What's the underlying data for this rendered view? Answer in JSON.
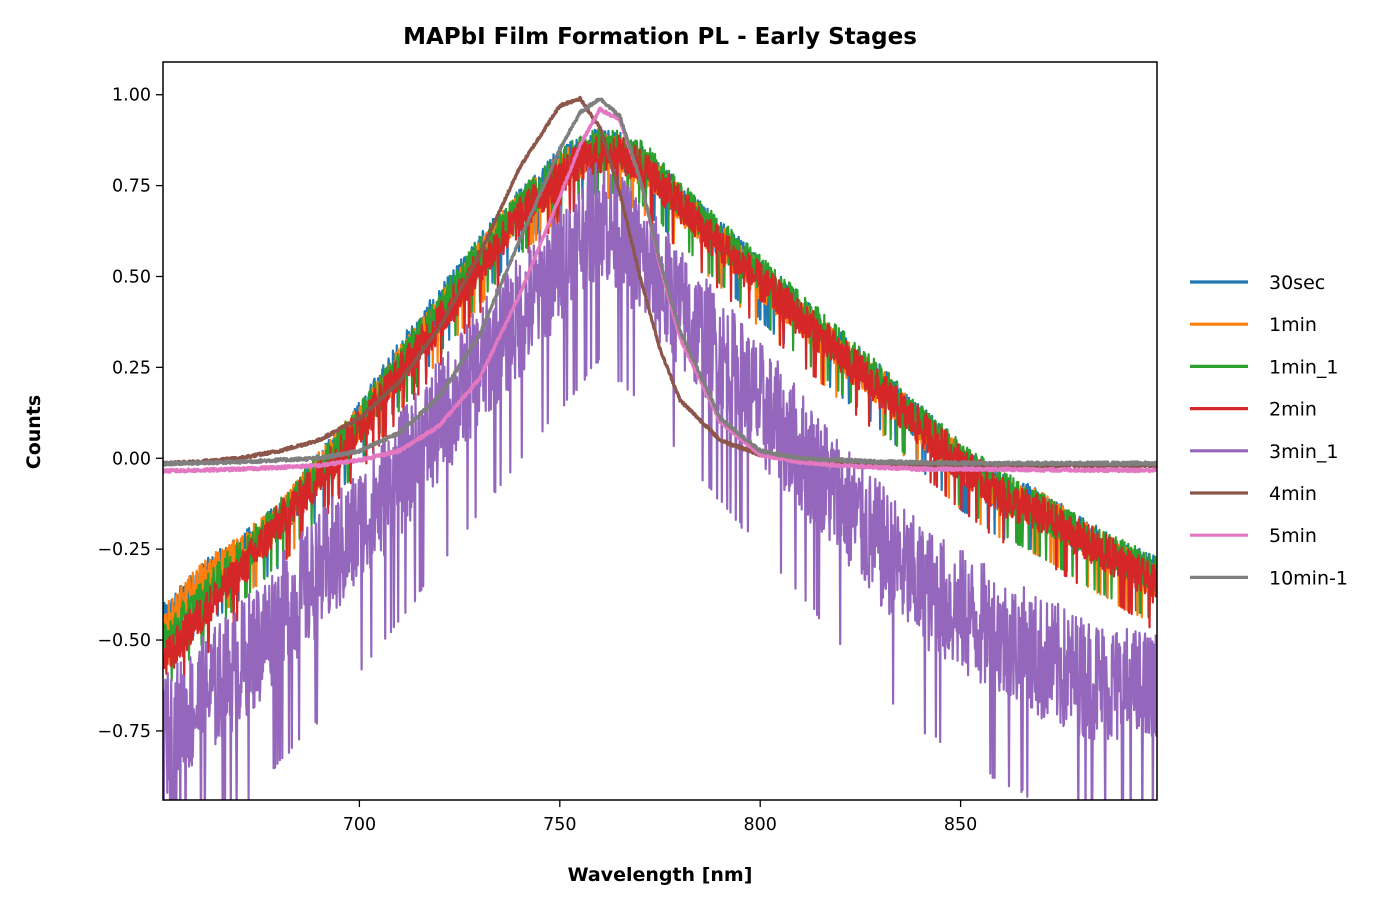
{
  "chart_data": {
    "type": "line",
    "title": "MAPbI Film Formation PL - Early Stages",
    "xlabel": "Wavelength [nm]",
    "ylabel": "Counts",
    "xlim": [
      651,
      899
    ],
    "ylim": [
      -0.94,
      1.09
    ],
    "x_ticks": [
      700,
      750,
      800,
      850
    ],
    "x_tick_labels": [
      "700",
      "750",
      "800",
      "850"
    ],
    "y_ticks": [
      -0.75,
      -0.5,
      -0.25,
      0.0,
      0.25,
      0.5,
      0.75,
      1.0
    ],
    "y_tick_labels": [
      "−0.75",
      "−0.50",
      "−0.25",
      "0.00",
      "0.25",
      "0.50",
      "0.75",
      "1.00"
    ],
    "grid": false,
    "legend_position": "right, outside plot",
    "x_sample": [
      651,
      660,
      670,
      680,
      690,
      700,
      710,
      720,
      730,
      740,
      750,
      755,
      760,
      765,
      770,
      775,
      780,
      790,
      800,
      810,
      820,
      830,
      840,
      850,
      860,
      870,
      880,
      890,
      899
    ],
    "series": [
      {
        "name": "30sec",
        "color": "#1f77b4",
        "noise": 0.05,
        "values": [
          -0.44,
          -0.33,
          -0.25,
          -0.16,
          -0.02,
          0.12,
          0.29,
          0.43,
          0.58,
          0.71,
          0.82,
          0.85,
          0.87,
          0.86,
          0.83,
          0.78,
          0.72,
          0.62,
          0.52,
          0.41,
          0.31,
          0.22,
          0.11,
          0.0,
          -0.08,
          -0.12,
          -0.2,
          -0.26,
          -0.31
        ]
      },
      {
        "name": "1min",
        "color": "#ff7f0e",
        "noise": 0.05,
        "values": [
          -0.45,
          -0.33,
          -0.25,
          -0.16,
          -0.02,
          0.11,
          0.27,
          0.41,
          0.56,
          0.7,
          0.8,
          0.84,
          0.86,
          0.85,
          0.82,
          0.77,
          0.71,
          0.61,
          0.5,
          0.4,
          0.3,
          0.21,
          0.1,
          0.0,
          -0.08,
          -0.13,
          -0.2,
          -0.27,
          -0.32
        ]
      },
      {
        "name": "1min_1",
        "color": "#2ca02c",
        "noise": 0.05,
        "values": [
          -0.5,
          -0.38,
          -0.26,
          -0.15,
          -0.02,
          0.11,
          0.27,
          0.42,
          0.57,
          0.7,
          0.81,
          0.85,
          0.87,
          0.87,
          0.84,
          0.79,
          0.73,
          0.62,
          0.52,
          0.42,
          0.32,
          0.22,
          0.11,
          0.01,
          -0.07,
          -0.13,
          -0.2,
          -0.26,
          -0.31
        ]
      },
      {
        "name": "2min",
        "color": "#d62728",
        "noise": 0.05,
        "values": [
          -0.55,
          -0.42,
          -0.3,
          -0.16,
          -0.04,
          0.1,
          0.25,
          0.39,
          0.54,
          0.68,
          0.79,
          0.83,
          0.85,
          0.85,
          0.82,
          0.77,
          0.71,
          0.6,
          0.5,
          0.4,
          0.3,
          0.2,
          0.1,
          0.0,
          -0.09,
          -0.14,
          -0.21,
          -0.27,
          -0.34
        ]
      },
      {
        "name": "3min_1",
        "color": "#9467bd",
        "noise": 0.16,
        "values": [
          -0.72,
          -0.62,
          -0.52,
          -0.39,
          -0.27,
          -0.14,
          0.0,
          0.15,
          0.3,
          0.44,
          0.58,
          0.65,
          0.72,
          0.66,
          0.6,
          0.53,
          0.46,
          0.33,
          0.2,
          0.07,
          -0.06,
          -0.19,
          -0.3,
          -0.37,
          -0.44,
          -0.5,
          -0.55,
          -0.58,
          -0.6
        ]
      },
      {
        "name": "4min",
        "color": "#8c564b",
        "noise": 0.004,
        "values": [
          -0.015,
          -0.01,
          -0.0,
          0.02,
          0.05,
          0.11,
          0.21,
          0.36,
          0.56,
          0.8,
          0.97,
          0.99,
          0.91,
          0.73,
          0.5,
          0.3,
          0.16,
          0.05,
          0.01,
          -0.005,
          -0.01,
          -0.015,
          -0.018,
          -0.02,
          -0.02,
          -0.02,
          -0.02,
          -0.02,
          -0.02
        ]
      },
      {
        "name": "5min",
        "color": "#e377c2",
        "noise": 0.004,
        "values": [
          -0.035,
          -0.033,
          -0.03,
          -0.025,
          -0.02,
          -0.005,
          0.02,
          0.09,
          0.22,
          0.45,
          0.72,
          0.86,
          0.96,
          0.93,
          0.77,
          0.53,
          0.33,
          0.1,
          0.01,
          -0.01,
          -0.02,
          -0.025,
          -0.03,
          -0.03,
          -0.03,
          -0.032,
          -0.032,
          -0.033,
          -0.033
        ]
      },
      {
        "name": "10min-1",
        "color": "#7f7f7f",
        "noise": 0.004,
        "values": [
          -0.015,
          -0.013,
          -0.01,
          -0.005,
          0.0,
          0.02,
          0.07,
          0.17,
          0.34,
          0.6,
          0.85,
          0.95,
          0.99,
          0.94,
          0.77,
          0.54,
          0.35,
          0.11,
          0.02,
          0.0,
          -0.005,
          -0.01,
          -0.012,
          -0.013,
          -0.014,
          -0.014,
          -0.014,
          -0.014,
          -0.014
        ]
      }
    ]
  }
}
